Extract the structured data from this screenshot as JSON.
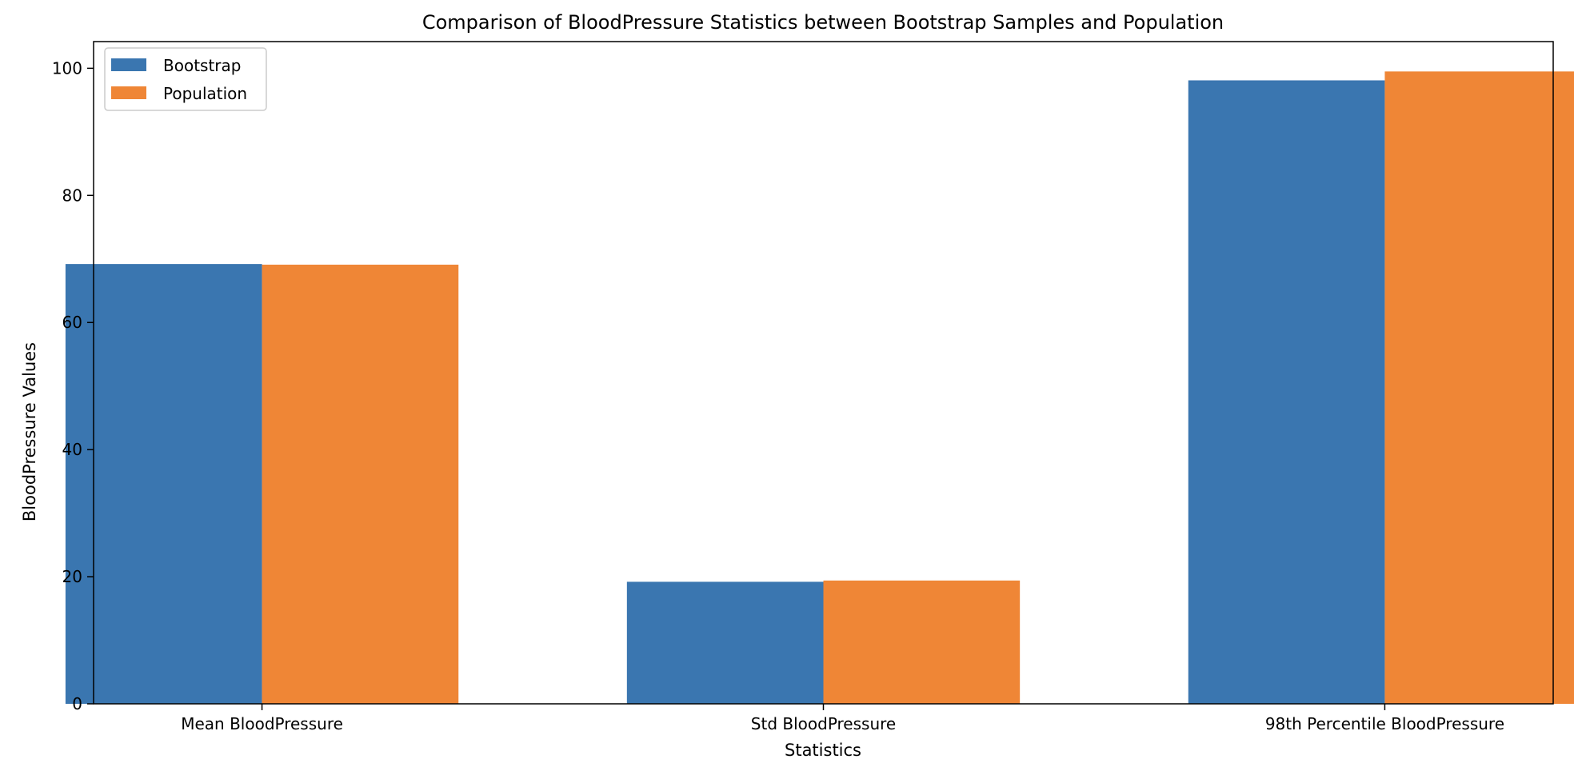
{
  "chart_data": {
    "type": "bar",
    "title": "Comparison of BloodPressure Statistics between Bootstrap Samples and Population",
    "xlabel": "Statistics",
    "ylabel": "BloodPressure Values",
    "categories": [
      "Mean BloodPressure",
      "Std BloodPressure",
      "98th Percentile BloodPressure"
    ],
    "series": [
      {
        "name": "Bootstrap",
        "color": "#3a76b0",
        "values": [
          69.2,
          19.2,
          98.1
        ]
      },
      {
        "name": "Population",
        "color": "#ef8636",
        "values": [
          69.1,
          19.4,
          99.5
        ]
      }
    ],
    "ylim": [
      0,
      104.2
    ],
    "yticks": [
      0,
      20,
      40,
      60,
      80,
      100
    ],
    "grid": false,
    "legend_position": "top-left"
  }
}
